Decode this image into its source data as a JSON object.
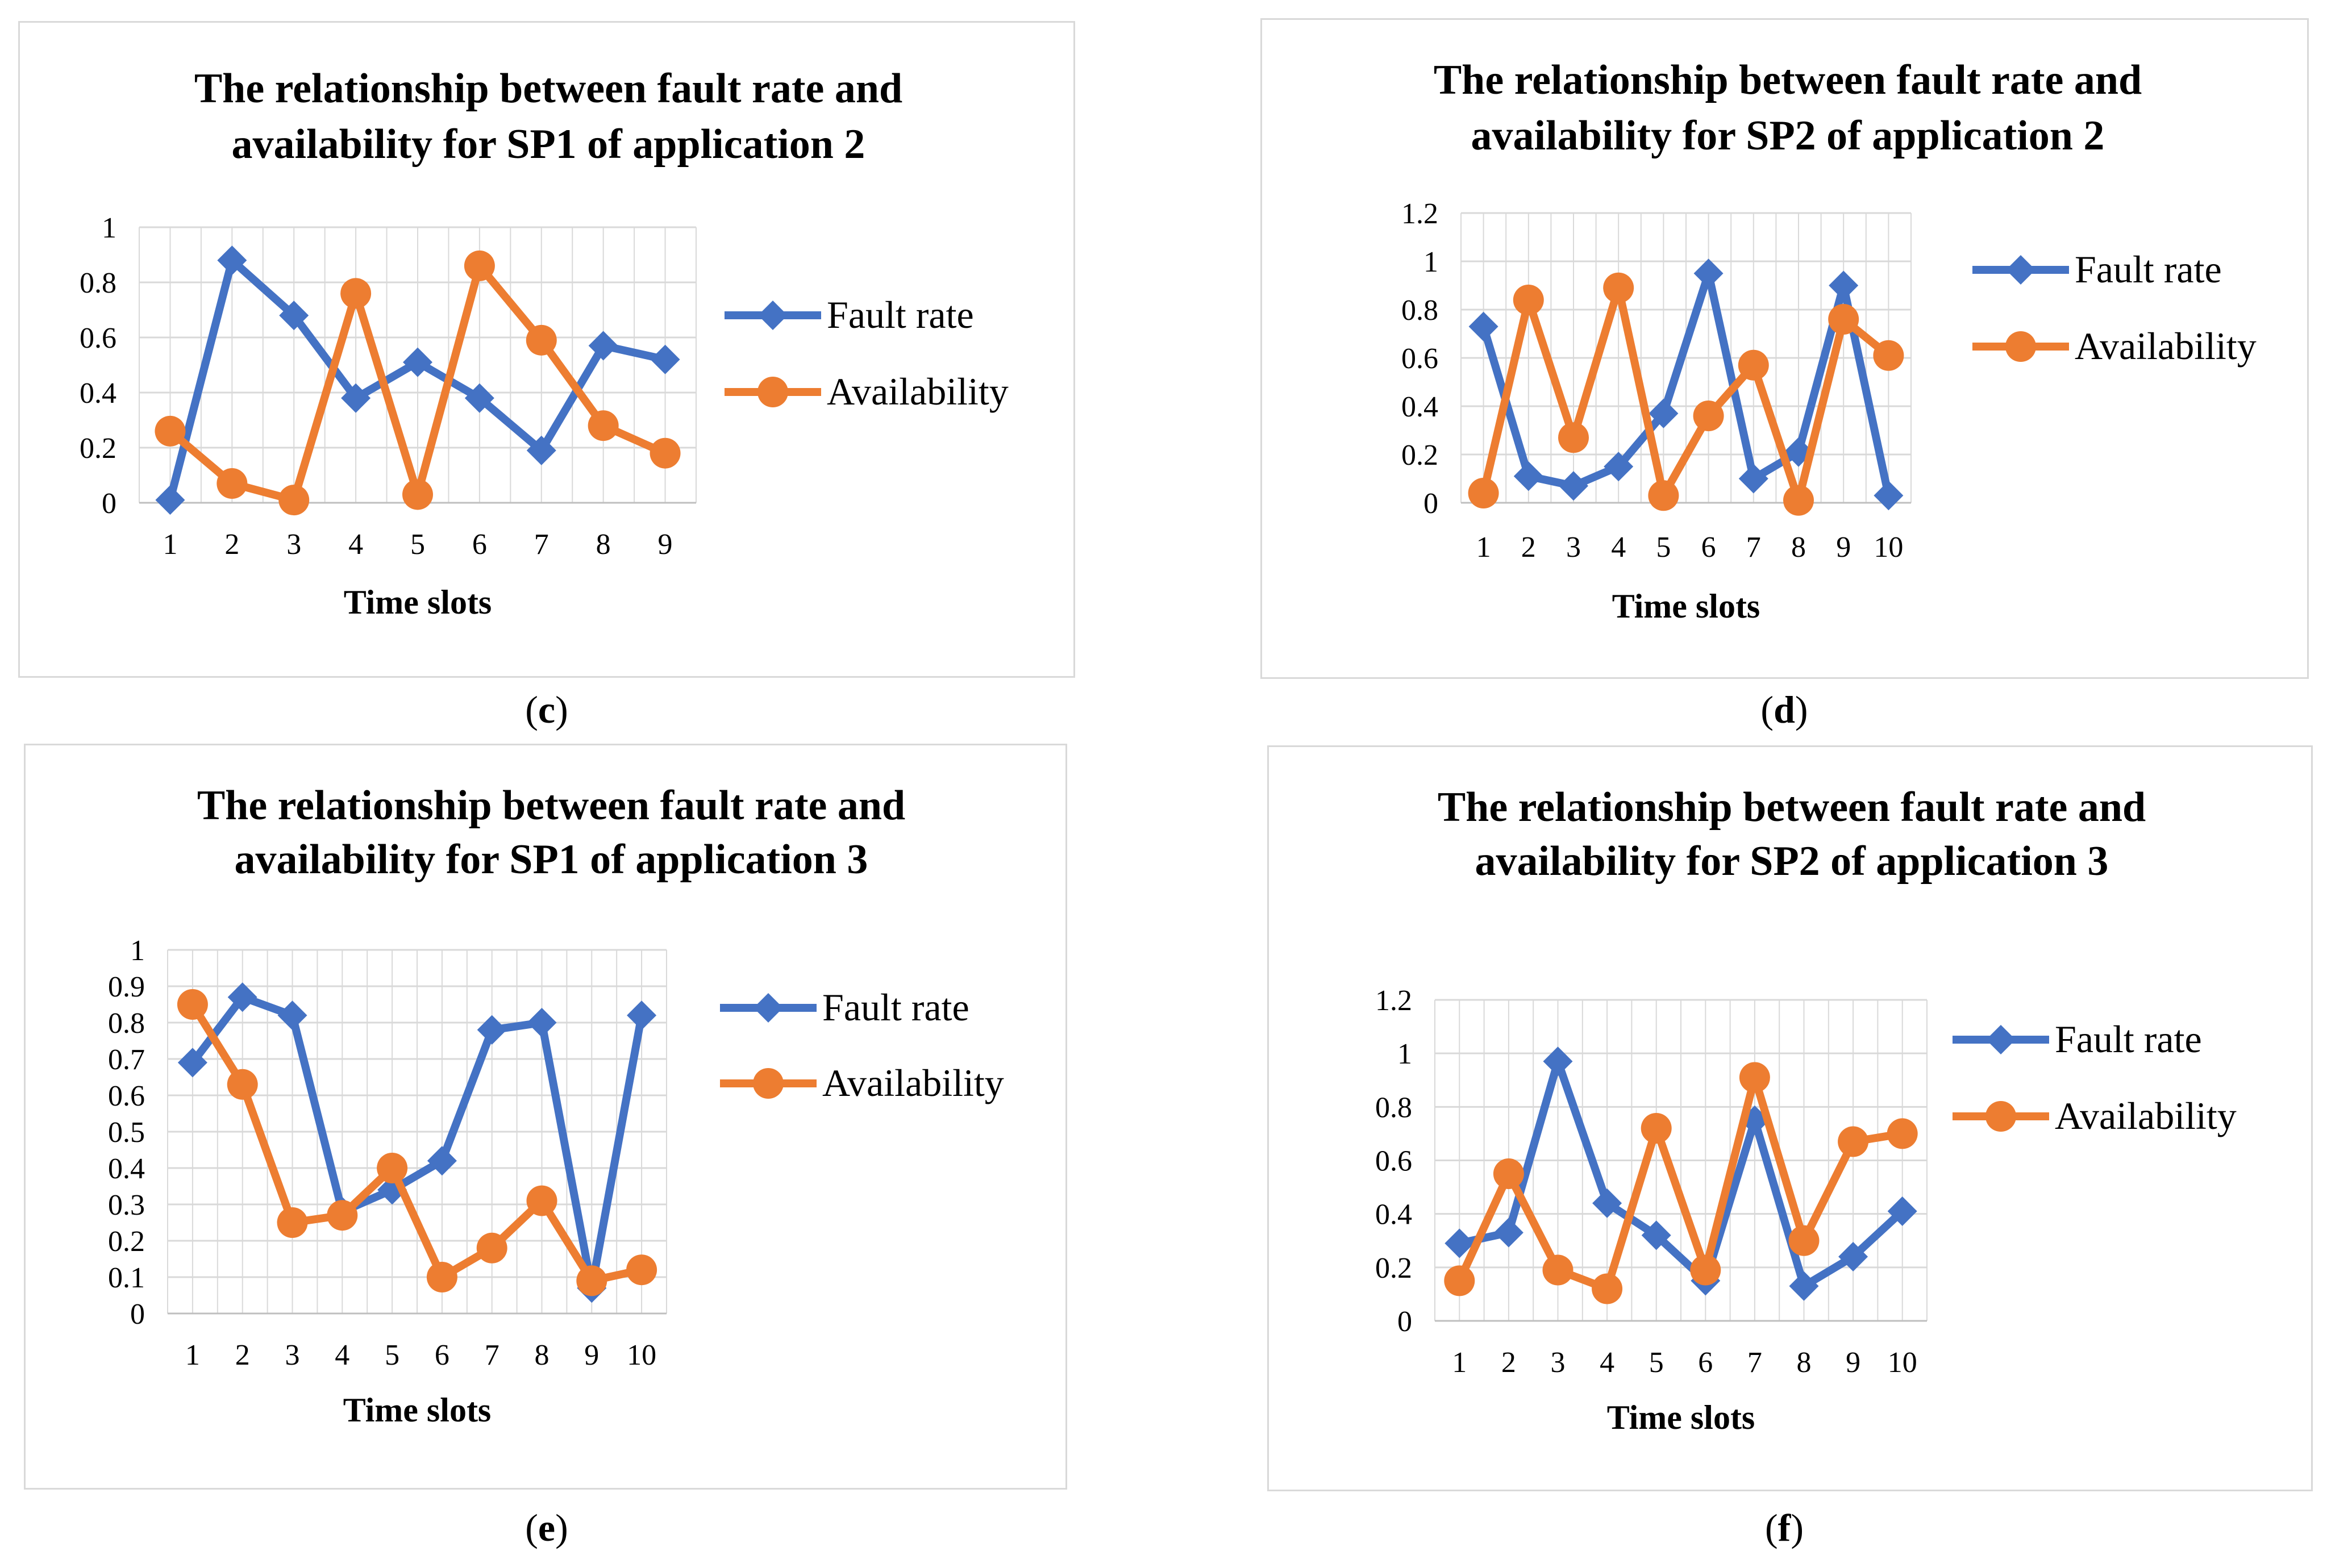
{
  "colors": {
    "fault": "#4472C4",
    "availability": "#ED7D31",
    "grid": "#d9d9d9",
    "axis": "#595959"
  },
  "legend": {
    "fault_rate": "Fault rate",
    "availability": "Availability"
  },
  "chart_data": [
    {
      "id": "c",
      "caption": "c",
      "type": "line",
      "title": [
        "The relationship between fault rate and",
        "availability for SP1 of application 2"
      ],
      "xlabel": "Time slots",
      "ylabel": "",
      "categories": [
        "1",
        "2",
        "3",
        "4",
        "5",
        "6",
        "7",
        "8",
        "9"
      ],
      "ylim": [
        0,
        1
      ],
      "yticks": [
        "0",
        "0.2",
        "0.4",
        "0.6",
        "0.8",
        "1"
      ],
      "ystep": 0.2,
      "grid": true,
      "legend_position": "right",
      "series": [
        {
          "name": "Fault rate",
          "marker": "diamond",
          "values": [
            0.01,
            0.88,
            0.68,
            0.38,
            0.51,
            0.38,
            0.19,
            0.57,
            0.52
          ]
        },
        {
          "name": "Availability",
          "marker": "circle",
          "values": [
            0.26,
            0.07,
            0.01,
            0.76,
            0.03,
            0.86,
            0.59,
            0.28,
            0.18
          ]
        }
      ]
    },
    {
      "id": "d",
      "caption": "d",
      "type": "line",
      "title": [
        "The relationship between fault rate and",
        "availability for SP2 of application 2"
      ],
      "xlabel": "Time slots",
      "ylabel": "",
      "categories": [
        "1",
        "2",
        "3",
        "4",
        "5",
        "6",
        "7",
        "8",
        "9",
        "10"
      ],
      "ylim": [
        0,
        1.2
      ],
      "yticks": [
        "0",
        "0.2",
        "0.4",
        "0.6",
        "0.8",
        "1",
        "1.2"
      ],
      "ystep": 0.2,
      "grid": true,
      "legend_position": "right",
      "series": [
        {
          "name": "Fault rate",
          "marker": "diamond",
          "values": [
            0.73,
            0.11,
            0.07,
            0.15,
            0.37,
            0.95,
            0.1,
            0.21,
            0.9,
            0.03
          ]
        },
        {
          "name": "Availability",
          "marker": "circle",
          "values": [
            0.04,
            0.84,
            0.27,
            0.89,
            0.03,
            0.36,
            0.57,
            0.01,
            0.76,
            0.61
          ]
        }
      ]
    },
    {
      "id": "e",
      "caption": "e",
      "type": "line",
      "title": [
        "The relationship between fault rate and",
        "availability for SP1 of application 3"
      ],
      "xlabel": "Time slots",
      "ylabel": "",
      "categories": [
        "1",
        "2",
        "3",
        "4",
        "5",
        "6",
        "7",
        "8",
        "9",
        "10"
      ],
      "ylim": [
        0,
        1
      ],
      "yticks": [
        "0",
        "0.1",
        "0.2",
        "0.3",
        "0.4",
        "0.5",
        "0.6",
        "0.7",
        "0.8",
        "0.9",
        "1"
      ],
      "ystep": 0.1,
      "grid": true,
      "legend_position": "right",
      "series": [
        {
          "name": "Fault rate",
          "marker": "diamond",
          "values": [
            0.69,
            0.87,
            0.82,
            0.28,
            0.34,
            0.42,
            0.78,
            0.8,
            0.07,
            0.82
          ]
        },
        {
          "name": "Availability",
          "marker": "circle",
          "values": [
            0.85,
            0.63,
            0.25,
            0.27,
            0.4,
            0.1,
            0.18,
            0.31,
            0.09,
            0.12
          ]
        }
      ]
    },
    {
      "id": "f",
      "caption": "f",
      "type": "line",
      "title": [
        "The relationship between fault rate and",
        "availability for SP2 of application 3"
      ],
      "xlabel": "Time slots",
      "ylabel": "",
      "categories": [
        "1",
        "2",
        "3",
        "4",
        "5",
        "6",
        "7",
        "8",
        "9",
        "10"
      ],
      "ylim": [
        0,
        1.2
      ],
      "yticks": [
        "0",
        "0.2",
        "0.4",
        "0.6",
        "0.8",
        "1",
        "1.2"
      ],
      "ystep": 0.2,
      "grid": true,
      "legend_position": "right",
      "series": [
        {
          "name": "Fault rate",
          "marker": "diamond",
          "values": [
            0.29,
            0.33,
            0.97,
            0.44,
            0.32,
            0.15,
            0.75,
            0.13,
            0.24,
            0.41
          ]
        },
        {
          "name": "Availability",
          "marker": "circle",
          "values": [
            0.15,
            0.55,
            0.19,
            0.12,
            0.72,
            0.19,
            0.91,
            0.3,
            0.67,
            0.7
          ]
        }
      ]
    }
  ]
}
